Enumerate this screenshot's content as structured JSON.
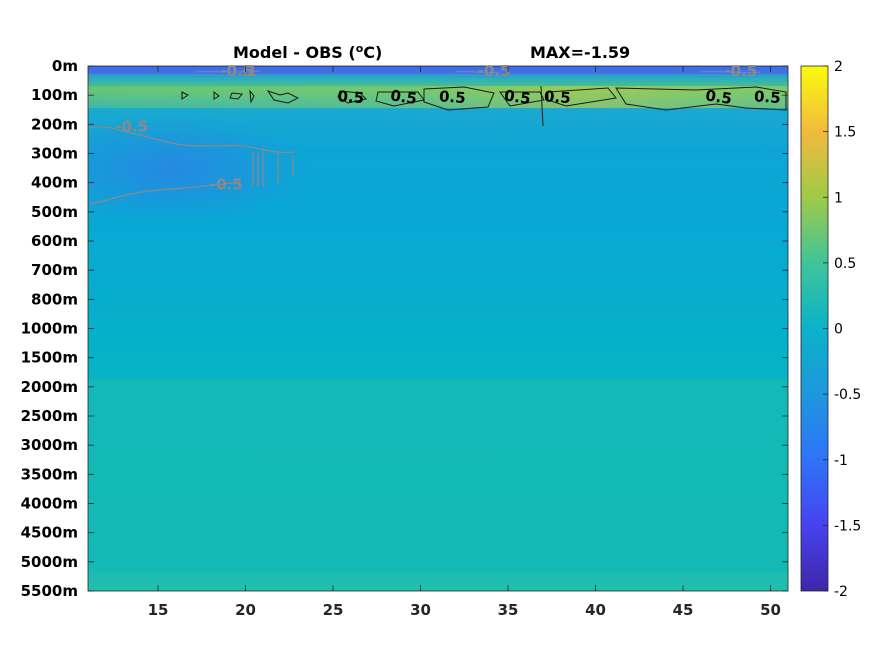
{
  "chart_data": {
    "type": "heatmap",
    "title": "Model - OBS (°C)",
    "title_parts": {
      "prefix": "Model - OBS (",
      "superscript": "o",
      "suffix": "C)"
    },
    "annotation": "MAX=-1.59",
    "x_ticks": [
      "15",
      "20",
      "25",
      "30",
      "35",
      "40",
      "45",
      "50"
    ],
    "x_tick_values": [
      15,
      20,
      25,
      30,
      35,
      40,
      45,
      50
    ],
    "xlim": [
      11,
      51
    ],
    "y_ticks": [
      "0m",
      "100m",
      "200m",
      "300m",
      "400m",
      "500m",
      "600m",
      "700m",
      "800m",
      "1000m",
      "1500m",
      "2000m",
      "2500m",
      "3000m",
      "3500m",
      "4000m",
      "4500m",
      "5000m",
      "5500m"
    ],
    "colorbar": {
      "range": [
        -2,
        2
      ],
      "ticks": [
        "2",
        "1.5",
        "1",
        "0.5",
        "0",
        "-0.5",
        "-1",
        "-1.5",
        "-2"
      ],
      "tick_values": [
        2,
        1.5,
        1,
        0.5,
        0,
        -0.5,
        -1,
        -1.5,
        -2
      ],
      "colormap": "parula"
    },
    "contour_labels": [
      {
        "text": "0.5",
        "x": 26.0,
        "depth": "100m"
      },
      {
        "text": "0.5",
        "x": 29.0,
        "depth": "100m"
      },
      {
        "text": "0.5",
        "x": 31.8,
        "depth": "100m"
      },
      {
        "text": "0.5",
        "x": 35.5,
        "depth": "100m"
      },
      {
        "text": "0.5",
        "x": 37.8,
        "depth": "100m"
      },
      {
        "text": "0.5",
        "x": 47.0,
        "depth": "100m"
      },
      {
        "text": "0.5",
        "x": 49.8,
        "depth": "100m"
      },
      {
        "text": "-0.5",
        "x": 19.5,
        "depth": "0m"
      },
      {
        "text": "-1",
        "x": 20.2,
        "depth": "0m"
      },
      {
        "text": "-0.5",
        "x": 34.2,
        "depth": "0m"
      },
      {
        "text": "-0.5",
        "x": 48.3,
        "depth": "0m"
      },
      {
        "text": "-0.5",
        "x": 13.5,
        "depth": "200m"
      },
      {
        "text": "-0.5",
        "x": 18.9,
        "depth": "400m"
      }
    ]
  }
}
